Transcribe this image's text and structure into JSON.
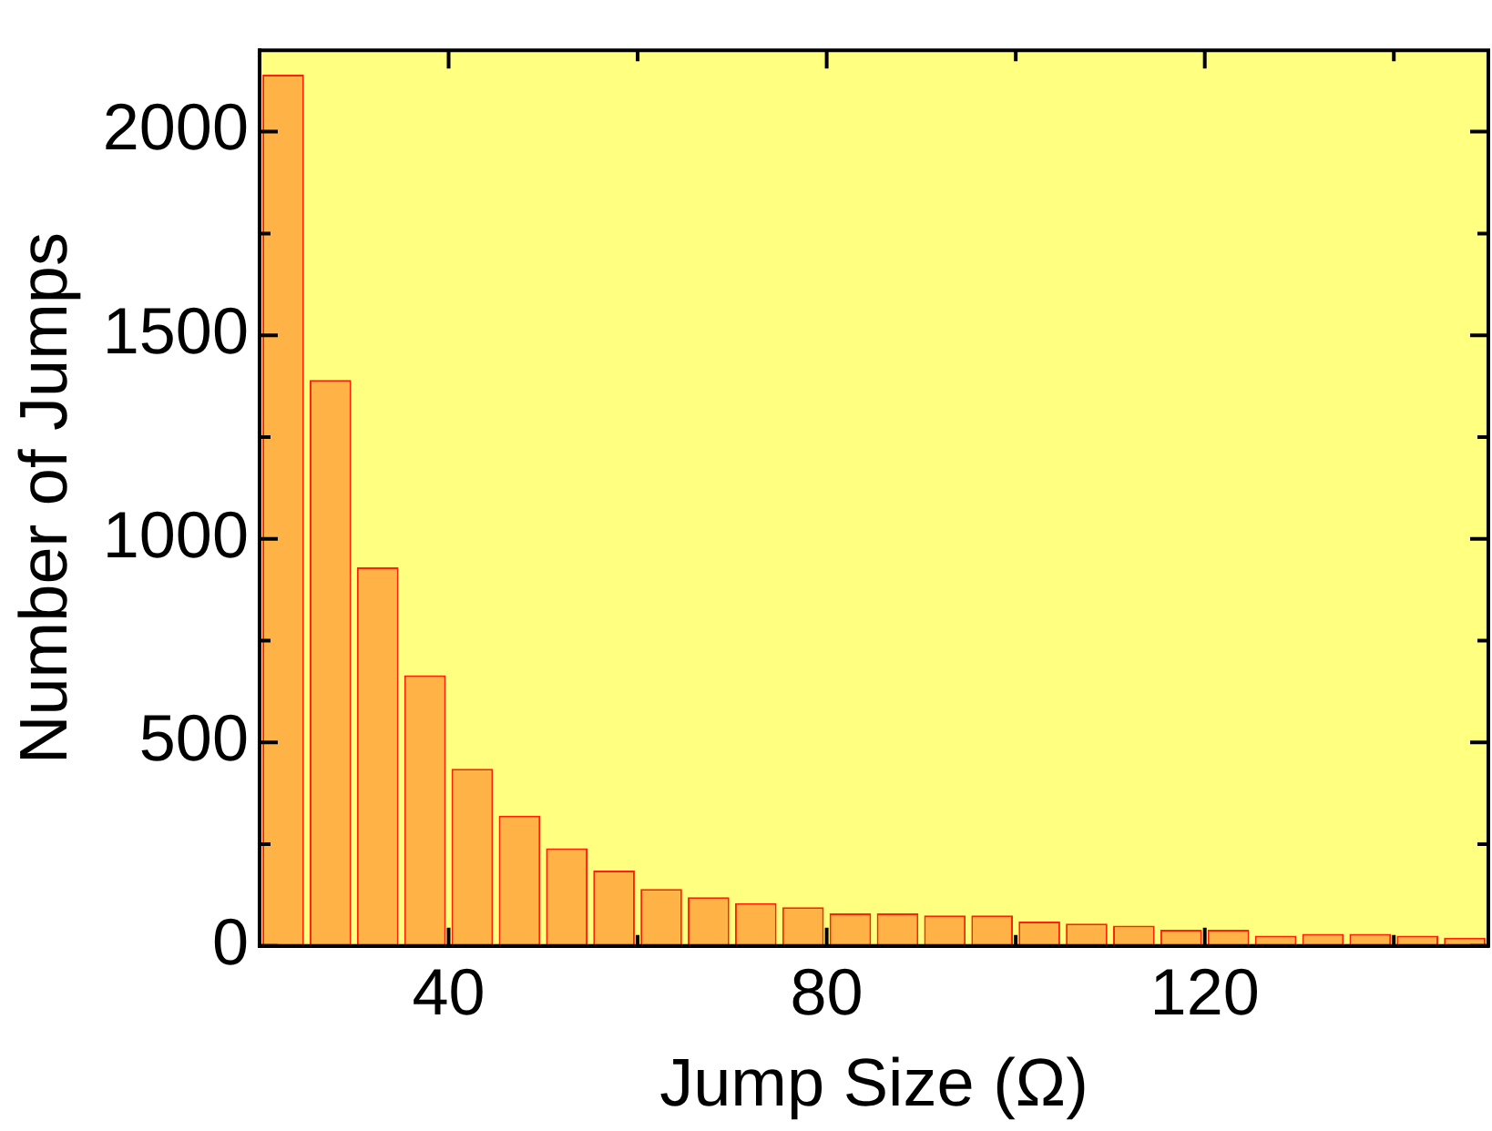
{
  "chart_data": {
    "type": "histogram",
    "xlabel": "Jump Size (Ω)",
    "ylabel": "Number of Jumps",
    "bins": [
      20,
      25,
      30,
      35,
      40,
      45,
      50,
      55,
      60,
      65,
      70,
      75,
      80,
      85,
      90,
      95,
      100,
      105,
      110,
      115,
      120,
      125,
      130,
      135,
      140,
      145,
      150
    ],
    "values": [
      2140,
      1390,
      930,
      665,
      435,
      320,
      240,
      185,
      140,
      120,
      105,
      95,
      80,
      80,
      75,
      75,
      60,
      55,
      50,
      40,
      40,
      25,
      30,
      30,
      25,
      20
    ],
    "color": "#ffb347",
    "xlim": [
      20,
      150
    ],
    "xticks": [
      {
        "value": 40,
        "label": "40"
      },
      {
        "value": 60,
        "label": null
      },
      {
        "value": 80,
        "label": "80"
      },
      {
        "value": 100,
        "label": null
      },
      {
        "value": 120,
        "label": "120"
      },
      {
        "value": 140,
        "label": null
      }
    ],
    "ylim": [
      0,
      2200
    ],
    "yticks": [
      0,
      {
        "value": 250,
        "label": null
      },
      500,
      {
        "value": 750,
        "label": null
      },
      1000,
      {
        "value": 1250,
        "label": null
      },
      1500,
      {
        "value": 1750,
        "label": null
      },
      2000
    ],
    "legend": false
  }
}
